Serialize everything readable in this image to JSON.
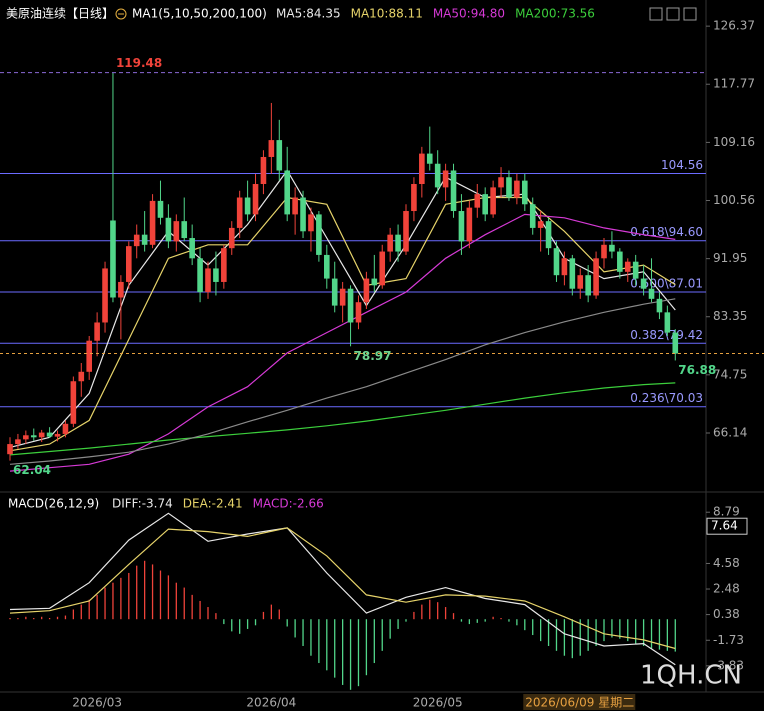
{
  "chart_data": [
    {
      "type": "candlestick",
      "title": "美原油连续",
      "subtitle": "【日线】",
      "ma_label": "MA1(5,10,50,200,100)",
      "up_color": "#f0433a",
      "down_color": "#52d68a",
      "categories": [
        null,
        null,
        null,
        null,
        null,
        null,
        null,
        null,
        null,
        null,
        null,
        "2026/03",
        null,
        null,
        null,
        null,
        null,
        null,
        null,
        null,
        null,
        null,
        null,
        null,
        null,
        null,
        null,
        null,
        null,
        null,
        null,
        null,
        null,
        "2026/04",
        null,
        null,
        null,
        null,
        null,
        null,
        null,
        null,
        null,
        null,
        null,
        null,
        null,
        null,
        null,
        null,
        null,
        null,
        null,
        null,
        "2026/05",
        null,
        null,
        null,
        null,
        null,
        null,
        null,
        null,
        null,
        null,
        null,
        null,
        null,
        null,
        null,
        null,
        null,
        null,
        null,
        null,
        null,
        null,
        null,
        null,
        null,
        null,
        null,
        null,
        null,
        "2026/06/09 星期二"
      ],
      "ohlc": [
        [
          63.0,
          65.5,
          62.04,
          64.5
        ],
        [
          64.5,
          66.0,
          63.8,
          65.2
        ],
        [
          65.2,
          66.5,
          64.5,
          65.8
        ],
        [
          65.8,
          66.8,
          65.0,
          65.5
        ],
        [
          65.5,
          66.6,
          64.8,
          66.2
        ],
        [
          66.2,
          67.0,
          65.4,
          65.6
        ],
        [
          65.6,
          66.5,
          64.9,
          66.0
        ],
        [
          66.0,
          68.0,
          65.5,
          67.5
        ],
        [
          67.5,
          74.5,
          67.0,
          73.8
        ],
        [
          73.8,
          76.5,
          71.5,
          75.2
        ],
        [
          75.2,
          80.5,
          74.0,
          79.8
        ],
        [
          79.8,
          84.0,
          77.5,
          82.5
        ],
        [
          82.5,
          91.5,
          81.0,
          90.5
        ],
        [
          97.6,
          119.48,
          85.5,
          86.2
        ],
        [
          86.2,
          89.5,
          80.0,
          88.5
        ],
        [
          88.5,
          94.5,
          87.5,
          93.8
        ],
        [
          93.8,
          97.0,
          92.0,
          95.5
        ],
        [
          95.5,
          99.0,
          93.0,
          94.0
        ],
        [
          94.0,
          101.5,
          93.5,
          100.5
        ],
        [
          100.5,
          103.5,
          97.0,
          98.0
        ],
        [
          98.0,
          100.0,
          93.5,
          94.5
        ],
        [
          94.5,
          98.5,
          93.0,
          97.5
        ],
        [
          97.5,
          101.0,
          94.5,
          95.0
        ],
        [
          95.0,
          97.0,
          91.0,
          92.0
        ],
        [
          92.0,
          93.5,
          85.5,
          87.0
        ],
        [
          87.0,
          91.5,
          86.0,
          90.5
        ],
        [
          90.5,
          93.0,
          86.5,
          88.5
        ],
        [
          88.5,
          94.0,
          87.5,
          93.5
        ],
        [
          93.5,
          97.5,
          92.5,
          96.5
        ],
        [
          96.5,
          102.0,
          95.0,
          101.0
        ],
        [
          101.0,
          103.5,
          97.5,
          98.5
        ],
        [
          98.5,
          104.5,
          97.5,
          103.0
        ],
        [
          103.0,
          108.0,
          101.5,
          107.0
        ],
        [
          107.0,
          115.0,
          104.5,
          109.5
        ],
        [
          109.5,
          112.5,
          103.5,
          105.0
        ],
        [
          105.0,
          108.5,
          97.5,
          98.5
        ],
        [
          98.5,
          102.5,
          95.5,
          101.0
        ],
        [
          101.0,
          102.0,
          95.0,
          96.0
        ],
        [
          96.0,
          99.5,
          93.0,
          98.5
        ],
        [
          98.5,
          99.0,
          91.5,
          92.5
        ],
        [
          92.5,
          94.0,
          87.5,
          89.0
        ],
        [
          89.0,
          91.5,
          84.0,
          85.0
        ],
        [
          85.0,
          88.5,
          82.5,
          87.5
        ],
        [
          87.5,
          88.0,
          78.97,
          82.5
        ],
        [
          82.5,
          86.5,
          81.5,
          85.5
        ],
        [
          85.5,
          90.0,
          84.5,
          89.0
        ],
        [
          89.0,
          92.5,
          87.0,
          88.0
        ],
        [
          88.0,
          94.0,
          87.5,
          93.0
        ],
        [
          93.0,
          96.5,
          91.5,
          95.5
        ],
        [
          95.5,
          97.0,
          91.5,
          93.0
        ],
        [
          93.0,
          100.0,
          92.5,
          99.0
        ],
        [
          99.0,
          104.0,
          97.5,
          103.0
        ],
        [
          103.0,
          108.5,
          101.0,
          107.5
        ],
        [
          107.5,
          111.5,
          105.0,
          106.0
        ],
        [
          106.0,
          108.0,
          101.5,
          102.5
        ],
        [
          102.5,
          106.0,
          100.5,
          105.0
        ],
        [
          105.0,
          106.0,
          98.0,
          99.0
        ],
        [
          99.0,
          101.5,
          92.5,
          94.5
        ],
        [
          94.5,
          100.5,
          93.5,
          99.5
        ],
        [
          99.5,
          103.0,
          98.0,
          101.5
        ],
        [
          101.5,
          102.5,
          97.5,
          98.5
        ],
        [
          98.5,
          103.5,
          98.0,
          102.5
        ],
        [
          102.5,
          105.5,
          101.0,
          104.0
        ],
        [
          104.0,
          105.0,
          100.5,
          101.0
        ],
        [
          101.0,
          104.5,
          100.0,
          103.5
        ],
        [
          103.5,
          104.5,
          99.0,
          100.0
        ],
        [
          100.0,
          101.0,
          95.5,
          96.5
        ],
        [
          96.5,
          99.0,
          93.0,
          97.5
        ],
        [
          97.5,
          98.0,
          92.5,
          93.5
        ],
        [
          93.5,
          94.5,
          88.5,
          89.5
        ],
        [
          89.5,
          93.0,
          88.0,
          92.0
        ],
        [
          92.0,
          92.5,
          86.5,
          87.5
        ],
        [
          87.5,
          90.5,
          86.0,
          89.5
        ],
        [
          89.5,
          91.0,
          85.5,
          86.5
        ],
        [
          86.5,
          93.0,
          86.0,
          92.0
        ],
        [
          92.0,
          95.0,
          90.5,
          94.0
        ],
        [
          94.0,
          96.0,
          92.0,
          93.0
        ],
        [
          93.0,
          93.5,
          89.0,
          90.0
        ],
        [
          90.0,
          92.0,
          88.5,
          91.5
        ],
        [
          91.5,
          92.5,
          88.0,
          89.0
        ],
        [
          89.0,
          91.0,
          86.5,
          87.5
        ],
        [
          87.5,
          92.0,
          85.5,
          86.0
        ],
        [
          86.0,
          87.0,
          83.0,
          84.0
        ],
        [
          84.0,
          85.0,
          80.5,
          81.0
        ],
        [
          81.0,
          81.5,
          76.88,
          77.9
        ]
      ],
      "x": [
        0,
        5,
        10,
        15,
        20,
        25,
        30,
        35,
        40,
        45,
        50,
        55,
        60,
        65,
        70,
        75,
        80,
        84
      ],
      "series": [
        {
          "name": "MA5:84.35",
          "color": "#e8e8e8",
          "values": [
            64,
            65.5,
            72,
            88,
            96,
            91,
            97,
            105,
            95,
            85,
            94,
            104,
            101,
            101.5,
            92,
            89,
            90,
            84.35
          ]
        },
        {
          "name": "MA10:88.11",
          "color": "#e6d36a",
          "values": [
            63.5,
            64.5,
            68,
            80,
            92,
            94,
            94,
            101,
            100,
            88,
            89,
            100,
            101,
            101,
            96,
            90,
            91,
            88.11
          ]
        },
        {
          "name": "MA50:94.80",
          "color": "#d63ad6",
          "values": [
            60.5,
            61,
            61.5,
            63,
            66,
            70,
            73,
            78,
            81,
            84,
            87,
            92,
            95.5,
            98.5,
            98,
            96.5,
            95.5,
            94.8
          ]
        },
        {
          "name": "MA200:73.56",
          "color": "#3ccf3c",
          "values": [
            62.9,
            63.4,
            63.9,
            64.5,
            65.1,
            65.6,
            66.1,
            66.6,
            67.2,
            67.9,
            68.7,
            69.5,
            70.4,
            71.3,
            72.1,
            72.8,
            73.3,
            73.56
          ]
        },
        {
          "color": "#8a8a8a",
          "values": [
            61.5,
            62,
            62.6,
            63.3,
            64.5,
            66,
            67.8,
            69.5,
            71.3,
            73,
            75,
            77,
            79.2,
            81,
            82.6,
            84,
            85.2,
            86
          ]
        }
      ],
      "levels": [
        104.56,
        {
          "value": 94.6,
          "label": "0.618\\94.60"
        },
        {
          "value": 87.01,
          "label": "0.500\\87.01"
        },
        {
          "value": 79.42,
          "label": "0.382\\79.42"
        },
        {
          "value": 70.03,
          "label": "0.236\\70.03"
        }
      ],
      "level_color": "#6b6bff",
      "annotations": [
        {
          "x": 13,
          "value": 119.48,
          "color": "#f0433a"
        },
        {
          "x": 43,
          "value": 78.97,
          "color": "#6fd48f"
        },
        {
          "x": 0,
          "value": 62.04,
          "color": "#52d68a"
        },
        {
          "x": 84,
          "value": 76.88,
          "color": "#52d68a"
        }
      ],
      "ylim": [
        57.7,
        129.5
      ],
      "yticks": [
        126.37,
        117.77,
        109.16,
        100.56,
        91.95,
        83.35,
        74.75,
        66.14
      ]
    },
    {
      "type": "macd",
      "title": "MACD(26,12,9)",
      "x": [
        0,
        5,
        10,
        15,
        20,
        25,
        30,
        35,
        40,
        45,
        50,
        55,
        60,
        65,
        70,
        75,
        80,
        84
      ],
      "series": [
        {
          "name": "DIFF:-3.74",
          "color": "#e8e8e8",
          "values": [
            0.8,
            0.9,
            3.0,
            6.5,
            8.7,
            6.4,
            7.0,
            7.5,
            3.8,
            0.5,
            1.8,
            2.6,
            1.7,
            1.2,
            -1.2,
            -2.2,
            -2.0,
            -3.74
          ]
        },
        {
          "name": "DEA:-2.41",
          "color": "#e6d36a",
          "values": [
            0.5,
            0.7,
            1.5,
            4.5,
            7.4,
            7.2,
            6.8,
            7.5,
            5.2,
            2.0,
            1.4,
            2.0,
            1.9,
            1.5,
            0.2,
            -1.2,
            -1.7,
            -2.41
          ]
        }
      ],
      "histogram": {
        "name": "MACD:-2.66",
        "color": "#d63ad6",
        "up_color": "#f0433a",
        "down_color": "#52d68a",
        "values": [
          0.1,
          0.1,
          0.2,
          0.1,
          0.2,
          0.1,
          0.2,
          0.3,
          0.8,
          1.2,
          1.6,
          2.0,
          2.6,
          3.0,
          3.4,
          3.8,
          4.4,
          4.8,
          4.5,
          4.0,
          3.6,
          3.0,
          2.6,
          2.0,
          1.5,
          1.0,
          0.5,
          -0.4,
          -1.0,
          -1.2,
          -0.8,
          -0.5,
          0.6,
          1.2,
          0.8,
          -0.6,
          -1.5,
          -2.2,
          -3.0,
          -3.6,
          -4.2,
          -4.8,
          -5.4,
          -5.8,
          -5.5,
          -4.6,
          -3.6,
          -2.6,
          -1.6,
          -0.8,
          -0.2,
          0.6,
          1.2,
          1.6,
          1.4,
          1.0,
          0.5,
          -0.2,
          -0.4,
          -0.3,
          -0.2,
          0.2,
          0.1,
          -0.2,
          -0.5,
          -0.9,
          -1.3,
          -1.8,
          -2.2,
          -2.6,
          -3.0,
          -3.2,
          -3.0,
          -2.6,
          -2.2,
          -1.8,
          -1.5,
          -1.6,
          -1.8,
          -2.0,
          -2.2,
          -2.4,
          -2.5,
          -2.6,
          -2.66
        ]
      },
      "axis_marker": 7.64,
      "ylim": [
        -5.98,
        10.04
      ],
      "yticks": [
        8.79,
        4.58,
        2.48,
        0.38,
        -1.73,
        -3.83
      ]
    }
  ],
  "watermark": "1QH.CN"
}
